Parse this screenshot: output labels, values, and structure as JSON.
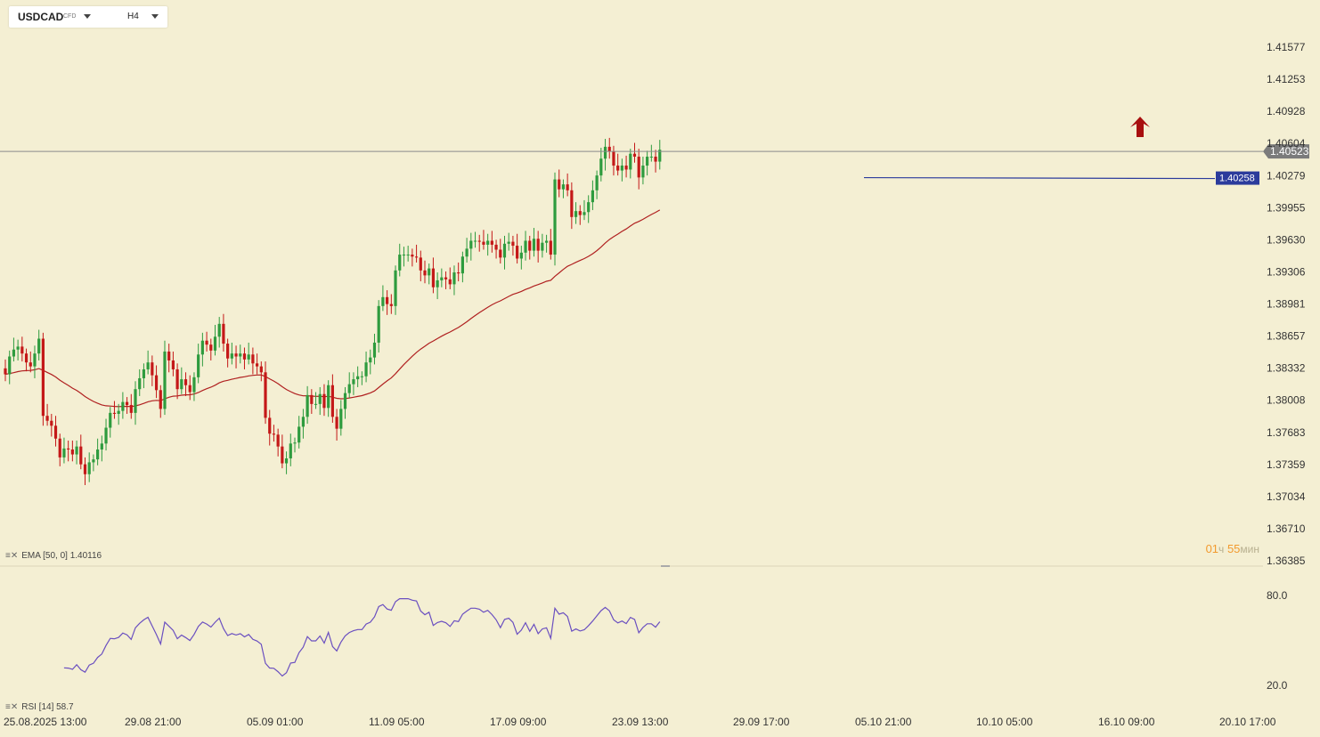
{
  "toolbar": {
    "symbol": "USDCAD",
    "symbol_tag": "CFD",
    "timeframe": "H4"
  },
  "colors": {
    "background": "#f4efd3",
    "bull_candle": "#2e9b3e",
    "bear_candle": "#c41818",
    "ema_line": "#b02020",
    "rsi_line": "#6a4fc0",
    "level_line": "#2b3b9c",
    "arrow": "#a80f0f",
    "axis_text": "#333333"
  },
  "legends": {
    "ema": "EMA [50, 0] 1.40116",
    "rsi": "RSI [14] 58.7",
    "icon": "indicator-settings-icon"
  },
  "timer": {
    "hours": "01",
    "hours_unit": "ч",
    "minutes": "55",
    "minutes_unit": "мин"
  },
  "chart_data": {
    "type": "candlestick",
    "title": "USDCAD CFD H4",
    "y_ticks": [
      "1.41577",
      "1.41253",
      "1.40928",
      "1.40604",
      "1.40279",
      "1.39955",
      "1.39630",
      "1.39306",
      "1.38981",
      "1.38657",
      "1.38332",
      "1.38008",
      "1.37683",
      "1.37359",
      "1.37034",
      "1.36710",
      "1.36385"
    ],
    "x_ticks": [
      "25.08.2025  13:00",
      "29.08  21:00",
      "05.09  01:00",
      "11.09  05:00",
      "17.09  09:00",
      "23.09  13:00",
      "29.09  17:00",
      "05.10  21:00",
      "10.10  05:00",
      "16.10  09:00",
      "20.10  17:00"
    ],
    "ylim": [
      1.3633,
      1.4185
    ],
    "current_price": "1.40523",
    "support_level": "1.40258",
    "signal": "up",
    "closes": [
      1.3827,
      1.3845,
      1.3852,
      1.3855,
      1.3848,
      1.3839,
      1.3835,
      1.3848,
      1.3863,
      1.3785,
      1.378,
      1.3775,
      1.3762,
      1.3743,
      1.3752,
      1.3751,
      1.3746,
      1.3754,
      1.3736,
      1.3726,
      1.3738,
      1.3741,
      1.3751,
      1.3757,
      1.3773,
      1.3788,
      1.3787,
      1.379,
      1.3799,
      1.3796,
      1.3788,
      1.3812,
      1.3823,
      1.3832,
      1.3839,
      1.3826,
      1.3811,
      1.3792,
      1.385,
      1.3841,
      1.3832,
      1.3812,
      1.3822,
      1.3816,
      1.3809,
      1.3824,
      1.3847,
      1.3861,
      1.3857,
      1.3851,
      1.3865,
      1.3878,
      1.3858,
      1.3843,
      1.3848,
      1.3845,
      1.3848,
      1.3842,
      1.3847,
      1.3838,
      1.3835,
      1.3829,
      1.3783,
      1.3767,
      1.3766,
      1.3754,
      1.3737,
      1.3742,
      1.3757,
      1.3758,
      1.3774,
      1.3784,
      1.3806,
      1.3797,
      1.3797,
      1.3807,
      1.3793,
      1.3816,
      1.3784,
      1.3772,
      1.3792,
      1.3808,
      1.3817,
      1.3822,
      1.3825,
      1.3825,
      1.3839,
      1.3844,
      1.3859,
      1.3896,
      1.3905,
      1.3898,
      1.3896,
      1.3932,
      1.3948,
      1.3948,
      1.3948,
      1.3946,
      1.3945,
      1.3932,
      1.3927,
      1.3934,
      1.3915,
      1.3922,
      1.3925,
      1.3923,
      1.3918,
      1.393,
      1.3929,
      1.3946,
      1.3954,
      1.3962,
      1.3962,
      1.3961,
      1.3958,
      1.3962,
      1.3958,
      1.3953,
      1.3945,
      1.3959,
      1.3961,
      1.3957,
      1.3944,
      1.395,
      1.3962,
      1.3952,
      1.3964,
      1.3952,
      1.396,
      1.3962,
      1.3948,
      1.4024,
      1.4014,
      1.4019,
      1.4013,
      1.3986,
      1.3992,
      1.3988,
      1.3991,
      1.4001,
      1.4013,
      1.4028,
      1.4045,
      1.4057,
      1.4052,
      1.4038,
      1.4033,
      1.4038,
      1.4034,
      1.405,
      1.4047,
      1.4026,
      1.4038,
      1.4047,
      1.4047,
      1.4042,
      1.4054
    ],
    "ema50_last": "1.40116",
    "rsi_period": 14,
    "rsi_last": "58.7",
    "rsi_ticks": [
      "80.0",
      "20.0"
    ]
  }
}
